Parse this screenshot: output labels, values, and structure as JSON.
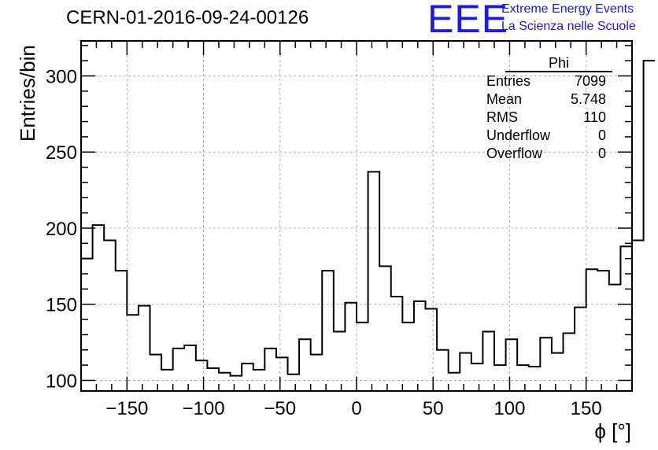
{
  "header": {
    "title": "CERN-01-2016-09-24-00126",
    "logo_text": "EEE",
    "brand_line1": "Extreme Energy Events",
    "brand_line2": "La Scienza nelle Scuole",
    "brand_color": "#1a1aee"
  },
  "stats_box": {
    "name": "Phi",
    "rows": [
      {
        "label": "Entries",
        "value": "7099"
      },
      {
        "label": "Mean",
        "value": "5.748"
      },
      {
        "label": "RMS",
        "value": "110"
      },
      {
        "label": "Underflow",
        "value": "0"
      },
      {
        "label": "Overflow",
        "value": "0"
      }
    ]
  },
  "chart_data": {
    "type": "bar",
    "style": "step-histogram",
    "xlabel": "ϕ [°]",
    "ylabel": "Entries/bin",
    "xlim": [
      -180,
      180
    ],
    "ylim": [
      93,
      323
    ],
    "grid": true,
    "bin_edges_start": -180,
    "bin_width": 7.5,
    "values": [
      180,
      202,
      192,
      172,
      143,
      149,
      117,
      107,
      121,
      123,
      113,
      108,
      105,
      103,
      111,
      107,
      121,
      115,
      104,
      127,
      117,
      172,
      132,
      151,
      138,
      237,
      175,
      155,
      138,
      152,
      147,
      120,
      105,
      118,
      111,
      132,
      110,
      127,
      110,
      109,
      128,
      118,
      131,
      148,
      173,
      172,
      163,
      188,
      192,
      310
    ],
    "xticks": [
      -150,
      -100,
      -50,
      0,
      50,
      100,
      150
    ],
    "xtick_labels": [
      "−150",
      "−100",
      "−50",
      "0",
      "50",
      "100",
      "150"
    ],
    "yticks": [
      100,
      150,
      200,
      250,
      300
    ],
    "ytick_labels": [
      "100",
      "150",
      "200",
      "250",
      "300"
    ]
  }
}
